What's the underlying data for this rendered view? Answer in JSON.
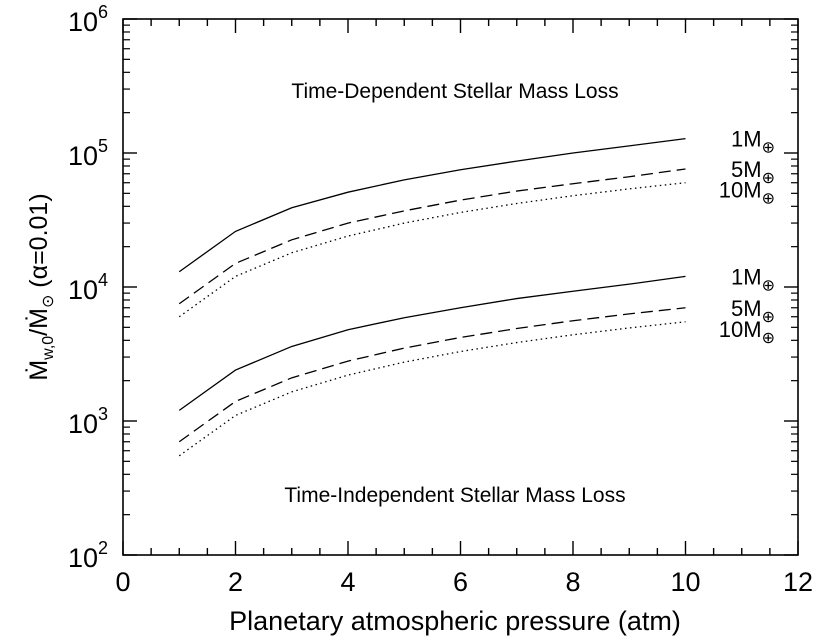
{
  "chart_data": {
    "type": "line",
    "xlabel": "Planetary atmospheric pressure (atm)",
    "ylabel": {
      "main": "Ṁ",
      "sub": "w,0",
      "slash": "/",
      "main2": "Ṁ",
      "sub2": "⊙",
      "suffix": " (α=0.01)"
    },
    "xlim": [
      0,
      12
    ],
    "ylim": [
      100,
      1000000
    ],
    "yscale": "log",
    "xticks": [
      "0",
      "2",
      "4",
      "6",
      "8",
      "10",
      "12"
    ],
    "yticks": [
      {
        "base": "10",
        "exp": "2"
      },
      {
        "base": "10",
        "exp": "3"
      },
      {
        "base": "10",
        "exp": "4"
      },
      {
        "base": "10",
        "exp": "5"
      },
      {
        "base": "10",
        "exp": "6"
      }
    ],
    "annotations": {
      "upper": "Time-Dependent Stellar Mass Loss",
      "lower": "Time-Independent Stellar Mass Loss"
    },
    "series": [
      {
        "name": "1M⊕",
        "label_text": "1M",
        "label_sub": "⊕",
        "style": "solid",
        "group": "time-dependent",
        "x": [
          1,
          2,
          3,
          4,
          5,
          6,
          7,
          8,
          9,
          10
        ],
        "y": [
          13000,
          26000,
          39000,
          51000,
          63000,
          75000,
          87000,
          100000,
          113000,
          128000
        ]
      },
      {
        "name": "5M⊕",
        "label_text": "5M",
        "label_sub": "⊕",
        "style": "dashed",
        "group": "time-dependent",
        "x": [
          1,
          2,
          3,
          4,
          5,
          6,
          7,
          8,
          9,
          10
        ],
        "y": [
          7500,
          15000,
          22500,
          30000,
          37000,
          44500,
          52000,
          59000,
          66500,
          76000
        ]
      },
      {
        "name": "10M⊕",
        "label_text": "10M",
        "label_sub": "⊕",
        "style": "dotted",
        "group": "time-dependent",
        "x": [
          1,
          2,
          3,
          4,
          5,
          6,
          7,
          8,
          9,
          10
        ],
        "y": [
          6000,
          12000,
          18000,
          24000,
          30000,
          36000,
          42000,
          48000,
          54000,
          60000
        ]
      },
      {
        "name": "1M⊕",
        "label_text": "1M",
        "label_sub": "⊕",
        "style": "solid",
        "group": "time-independent",
        "x": [
          1,
          2,
          3,
          4,
          5,
          6,
          7,
          8,
          9,
          10
        ],
        "y": [
          1200,
          2400,
          3600,
          4800,
          5900,
          7000,
          8200,
          9300,
          10500,
          12000
        ]
      },
      {
        "name": "5M⊕",
        "label_text": "5M",
        "label_sub": "⊕",
        "style": "dashed",
        "group": "time-independent",
        "x": [
          1,
          2,
          3,
          4,
          5,
          6,
          7,
          8,
          9,
          10
        ],
        "y": [
          700,
          1400,
          2100,
          2800,
          3500,
          4200,
          4900,
          5600,
          6300,
          7000
        ]
      },
      {
        "name": "10M⊕",
        "label_text": "10M",
        "label_sub": "⊕",
        "style": "dotted",
        "group": "time-independent",
        "x": [
          1,
          2,
          3,
          4,
          5,
          6,
          7,
          8,
          9,
          10
        ],
        "y": [
          550,
          1100,
          1650,
          2200,
          2750,
          3300,
          3850,
          4400,
          4950,
          5500
        ]
      }
    ]
  }
}
